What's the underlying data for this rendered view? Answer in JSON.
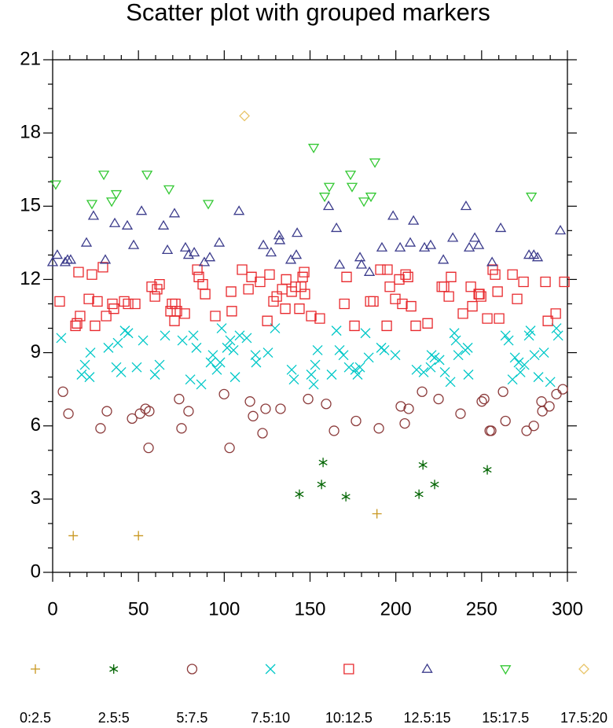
{
  "chart_data": {
    "type": "scatter",
    "title": "Scatter plot with grouped markers",
    "xlim": [
      0,
      300
    ],
    "ylim": [
      0,
      21
    ],
    "xticks": [
      0,
      50,
      100,
      150,
      200,
      250,
      300
    ],
    "yticks": [
      0,
      3,
      6,
      9,
      12,
      15,
      18,
      21
    ],
    "legend": "bottom",
    "series": [
      {
        "name": "0:2.5",
        "color": "#c8961e",
        "marker": "plus",
        "x": [
          12,
          50,
          189
        ],
        "y": [
          1.5,
          1.5,
          2.4
        ]
      },
      {
        "name": "2.5:5",
        "color": "#006400",
        "marker": "star",
        "x": [
          143.8,
          157.6,
          156.7,
          170.9,
          213.5,
          215.8,
          222.6,
          253.3
        ],
        "y": [
          3.2,
          4.5,
          3.6,
          3.1,
          3.2,
          4.4,
          3.6,
          4.2
        ]
      },
      {
        "name": "5:7.5",
        "color": "#8b3a3a",
        "marker": "circle",
        "x": [
          6,
          9.2,
          27.9,
          31.6,
          46.3,
          50.9,
          54.1,
          56.3,
          55.9,
          73.7,
          75.1,
          79.2,
          99.9,
          103.1,
          115,
          116.8,
          122.3,
          124.1,
          132.8,
          148.9,
          159.4,
          164,
          176.8,
          190.1,
          202.9,
          205.2,
          207.5,
          215.3,
          224.9,
          237.7,
          250.1,
          251.5,
          254.7,
          255.6,
          262.5,
          263.9,
          276.2,
          280.4,
          284.9,
          285.4,
          289.5,
          293.6,
          297.3
        ],
        "y": [
          7.4,
          6.5,
          5.9,
          6.6,
          6.3,
          6.5,
          6.7,
          6.6,
          5.1,
          7.1,
          5.9,
          6.6,
          7.3,
          5.1,
          7.0,
          6.4,
          5.7,
          6.7,
          6.7,
          7.1,
          6.9,
          5.8,
          6.2,
          5.9,
          6.8,
          6.1,
          6.7,
          7.4,
          7.1,
          6.5,
          7.0,
          7.1,
          5.8,
          5.8,
          7.4,
          6.2,
          5.8,
          6.0,
          7.0,
          6.6,
          6.8,
          7.3,
          7.5
        ]
      },
      {
        "name": "7.5:10",
        "color": "#00c8c8",
        "marker": "cross",
        "x": [
          5,
          16.9,
          18.8,
          21.5,
          22,
          32.5,
          37.1,
          38,
          39.9,
          42.1,
          44,
          49,
          52.7,
          59.6,
          62.3,
          65.5,
          75.6,
          80.2,
          82,
          83.8,
          86.6,
          92.1,
          93.4,
          95.7,
          97.6,
          98.5,
          101.7,
          103.5,
          105.4,
          106.3,
          109,
          113.1,
          118.2,
          118.6,
          125.5,
          129.6,
          139.3,
          140.6,
          150.7,
          152.1,
          153,
          154.4,
          162.6,
          165.4,
          167.2,
          169.5,
          172.7,
          176.4,
          177.7,
          179.1,
          182.3,
          184.2,
          191.5,
          193.3,
          199.7,
          212.1,
          216.2,
          220.3,
          220.8,
          222.6,
          225.4,
          228.6,
          231.8,
          234.1,
          235,
          236.4,
          240.5,
          241.9,
          242.3,
          263.9,
          265.7,
          268,
          269.4,
          271.6,
          272.6,
          274.9,
          277.6,
          278.5,
          280.8,
          283.1,
          286.3,
          290,
          293.6,
          294.6
        ],
        "y": [
          9.6,
          8.1,
          8.5,
          8.0,
          9.0,
          9.2,
          8.4,
          9.4,
          8.2,
          9.9,
          9.8,
          8.4,
          9.5,
          8.1,
          8.5,
          9.7,
          9.5,
          7.9,
          9.7,
          9.2,
          7.7,
          8.6,
          8.9,
          8.3,
          8.6,
          10.0,
          9.2,
          9.5,
          9.1,
          8.0,
          9.7,
          9.6,
          8.9,
          8.6,
          9.0,
          10.0,
          8.3,
          7.9,
          8.1,
          7.7,
          8.5,
          9.1,
          8.1,
          9.9,
          9.1,
          8.9,
          8.4,
          8.3,
          8.1,
          8.4,
          9.8,
          8.8,
          9.2,
          9.1,
          8.9,
          8.3,
          8.2,
          8.4,
          8.9,
          8.8,
          8.7,
          8.2,
          7.8,
          9.8,
          9.5,
          8.9,
          9.1,
          9.2,
          8.1,
          9.7,
          9.5,
          7.9,
          8.8,
          8.6,
          8.2,
          8.5,
          9.7,
          9.9,
          8.9,
          8.0,
          9.0,
          7.8,
          10.0,
          9.7
        ]
      },
      {
        "name": "10:12.5",
        "color": "#e8282c",
        "marker": "square",
        "x": [
          4.1,
          13.3,
          14.2,
          15.1,
          16,
          21.1,
          22.9,
          24.7,
          26.1,
          29.3,
          31.2,
          34.8,
          35.7,
          41.7,
          44,
          48.1,
          57.7,
          59.6,
          60.9,
          62.3,
          68.7,
          69.6,
          71,
          71.5,
          72.4,
          77,
          84.3,
          85.2,
          87.5,
          88.9,
          94.8,
          104.4,
          104,
          110.4,
          114.1,
          115.9,
          120.9,
          125.1,
          126.4,
          128.7,
          130.6,
          133.8,
          135.6,
          136.1,
          139.3,
          141.5,
          143.8,
          144.8,
          145.7,
          146.6,
          147,
          150.7,
          155.7,
          171.3,
          170,
          175.9,
          185.1,
          186.9,
          191,
          195.1,
          194.7,
          196.5,
          199.7,
          202,
          203.8,
          205.7,
          207.1,
          208.9,
          211.6,
          218.5,
          226.8,
          228.1,
          230.9,
          232.2,
          239.1,
          243.7,
          244.6,
          248.3,
          248.7,
          249.7,
          253.3,
          256.5,
          257.9,
          260.2,
          259.3,
          268,
          270.7,
          274.4,
          287.2,
          288.6,
          293.2,
          298.2
        ],
        "y": [
          11.1,
          10.1,
          10.2,
          12.3,
          10.5,
          11.2,
          12.2,
          10.1,
          11.1,
          12.5,
          10.5,
          11.0,
          10.8,
          11.1,
          11.0,
          11.0,
          11.7,
          11.3,
          11.6,
          11.8,
          10.7,
          11.0,
          10.3,
          11.0,
          10.7,
          10.6,
          12.4,
          12.1,
          11.8,
          11.4,
          10.5,
          10.7,
          11.5,
          12.4,
          11.6,
          12.1,
          11.9,
          10.3,
          12.2,
          11.1,
          11.3,
          11.6,
          10.8,
          12.0,
          11.5,
          11.7,
          10.8,
          11.7,
          12.1,
          12.3,
          11.4,
          10.5,
          10.4,
          12.1,
          11.0,
          10.1,
          11.1,
          11.1,
          12.4,
          12.4,
          10.1,
          11.7,
          11.2,
          12.0,
          11.0,
          12.2,
          12.1,
          10.9,
          10.1,
          10.2,
          11.7,
          11.7,
          11.3,
          12.1,
          10.6,
          11.7,
          10.9,
          11.4,
          11.4,
          11.3,
          10.4,
          12.4,
          12.2,
          10.4,
          11.5,
          12.2,
          11.2,
          11.9,
          11.9,
          10.3,
          10.6,
          11.9
        ]
      },
      {
        "name": "12.5:15",
        "color": "#3c3c8c",
        "marker": "triangle-up",
        "x": [
          0,
          2.7,
          7.3,
          8.7,
          10.5,
          19.7,
          23.8,
          30.7,
          36.2,
          43.5,
          47.2,
          51.8,
          64.6,
          66.9,
          71,
          77.4,
          79.2,
          82.5,
          88.4,
          91.6,
          97.1,
          108.6,
          122.8,
          127.3,
          131.9,
          132.4,
          138.8,
          142,
          142.5,
          160.8,
          165.4,
          167.2,
          179.1,
          180,
          184.6,
          191.9,
          198.4,
          202.5,
          208.4,
          210.3,
          216.7,
          220.3,
          227.7,
          233.2,
          240.9,
          242.8,
          246,
          248.3,
          256.1,
          261.1,
          277.6,
          280.4,
          282.6,
          295.9
        ],
        "y": [
          12.7,
          13.0,
          12.7,
          12.8,
          12.8,
          13.5,
          14.6,
          12.8,
          14.3,
          14.2,
          13.4,
          14.8,
          14.2,
          13.2,
          14.7,
          13.3,
          13.0,
          13.1,
          12.7,
          12.9,
          13.5,
          14.8,
          13.4,
          13.1,
          13.8,
          13.6,
          12.8,
          13.0,
          13.9,
          15.0,
          14.1,
          12.6,
          12.9,
          12.6,
          12.3,
          13.3,
          14.6,
          13.3,
          13.5,
          14.4,
          13.3,
          13.4,
          12.8,
          13.7,
          15.0,
          13.3,
          13.7,
          13.4,
          12.7,
          14.1,
          13.0,
          13.0,
          12.9,
          14.0
        ]
      },
      {
        "name": "15:17.5",
        "color": "#32c832",
        "marker": "triangle-down",
        "x": [
          1.8,
          22.9,
          29.8,
          34.4,
          37.1,
          55,
          67.8,
          90.7,
          152.1,
          158.5,
          161.2,
          173.6,
          174.5,
          181.4,
          185.5,
          187.8,
          279
        ],
        "y": [
          15.9,
          15.1,
          16.3,
          15.2,
          15.5,
          16.3,
          15.7,
          15.1,
          17.4,
          15.4,
          15.8,
          16.3,
          15.8,
          15.2,
          15.4,
          16.8,
          15.4
        ]
      },
      {
        "name": "17.5:20",
        "color": "#e8c468",
        "marker": "diamond",
        "x": [
          111.8
        ],
        "y": [
          18.7
        ]
      }
    ]
  }
}
